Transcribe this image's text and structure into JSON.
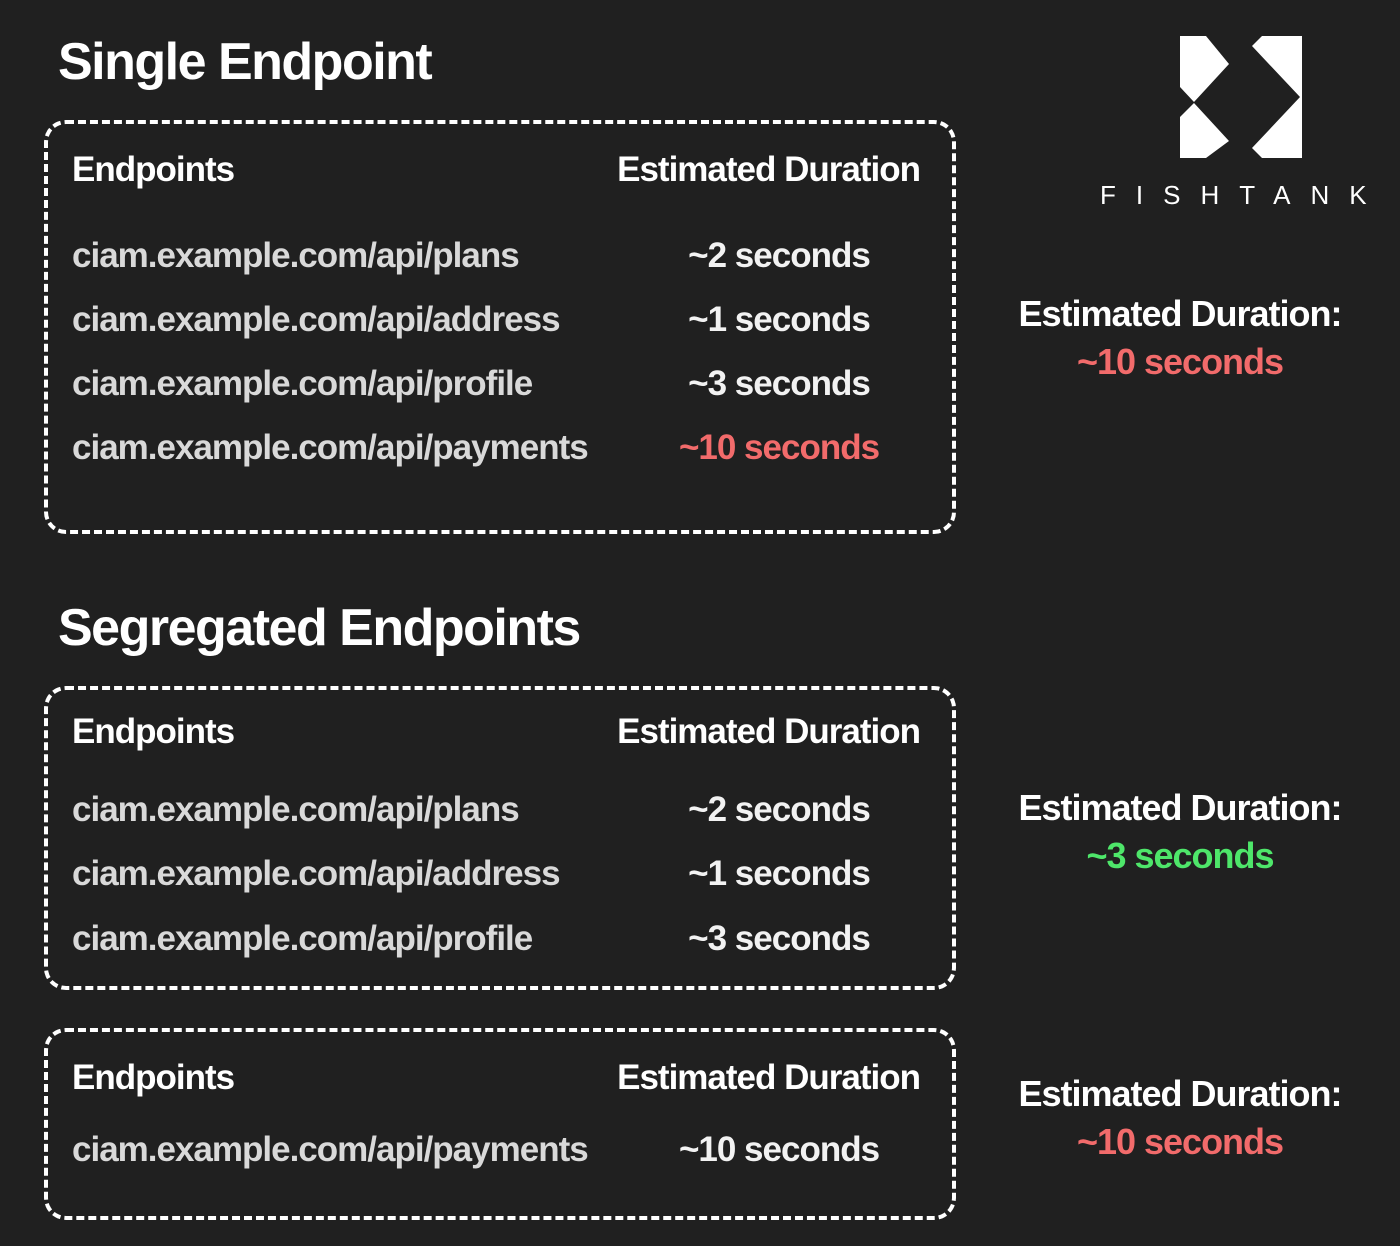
{
  "brand": {
    "name": "FISHTANK",
    "logo_icon": "fishtank-logo-icon"
  },
  "sections": [
    {
      "title": "Single Endpoint",
      "boxes": [
        {
          "header": {
            "endpoints": "Endpoints",
            "duration": "Estimated Duration"
          },
          "rows": [
            {
              "url": "ciam.example.com/api/plans",
              "duration": "~2 seconds"
            },
            {
              "url": "ciam.example.com/api/address",
              "duration": "~1 seconds"
            },
            {
              "url": "ciam.example.com/api/profile",
              "duration": "~3 seconds"
            },
            {
              "url": "ciam.example.com/api/payments",
              "duration": "~10 seconds",
              "highlight": "#f26b6b"
            }
          ],
          "summary": {
            "label": "Estimated Duration:",
            "value": "~10 seconds",
            "color": "#f26b6b"
          }
        }
      ]
    },
    {
      "title": "Segregated Endpoints",
      "boxes": [
        {
          "header": {
            "endpoints": "Endpoints",
            "duration": "Estimated Duration"
          },
          "rows": [
            {
              "url": "ciam.example.com/api/plans",
              "duration": "~2 seconds"
            },
            {
              "url": "ciam.example.com/api/address",
              "duration": "~1 seconds"
            },
            {
              "url": "ciam.example.com/api/profile",
              "duration": "~3 seconds"
            }
          ],
          "summary": {
            "label": "Estimated Duration:",
            "value": "~3 seconds",
            "color": "#4ee66a"
          }
        },
        {
          "header": {
            "endpoints": "Endpoints",
            "duration": "Estimated Duration"
          },
          "rows": [
            {
              "url": "ciam.example.com/api/payments",
              "duration": "~10 seconds"
            }
          ],
          "summary": {
            "label": "Estimated Duration:",
            "value": "~10 seconds",
            "color": "#f26b6b"
          }
        }
      ]
    }
  ]
}
